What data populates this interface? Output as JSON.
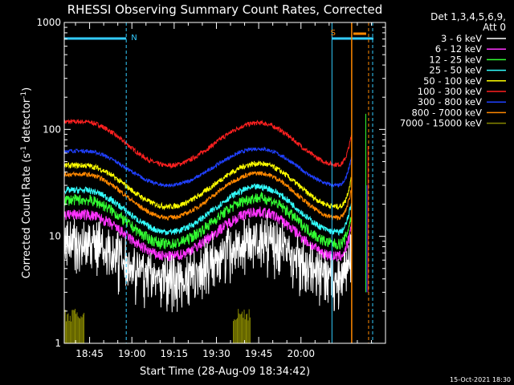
{
  "chart_data": {
    "type": "line",
    "title": "RHESSI Observing Summary Count Rates, Corrected",
    "xlabel": "Start Time (28-Aug-09 18:34:42)",
    "ylabel_main": "Corrected Count Rate (s",
    "ylabel_sup1": "-1",
    "ylabel_mid": " detector",
    "ylabel_sup2": "-1",
    "ylabel_end": ")",
    "x_ticks": [
      "18:45",
      "19:00",
      "19:15",
      "19:30",
      "19:45",
      "20:00"
    ],
    "y_ticks": [
      "1",
      "10",
      "100",
      "1000"
    ],
    "y_log": true,
    "ylim": [
      1,
      1000
    ],
    "xlim_minutes_after_1830": [
      6.0,
      120.0
    ],
    "legend_header_line1": "Det 1,3,4,5,6,9,",
    "legend_header_line2": "Att 0",
    "legend_placement": "right",
    "series": [
      {
        "name": "3 - 6 keV",
        "color": "#ffffff",
        "peak1": 9,
        "trough": 4.0,
        "peak2": 9.5,
        "trough2": 4.0,
        "noise": 0.25
      },
      {
        "name": "6 - 12 keV",
        "color": "#ff33ff",
        "peak1": 16,
        "trough": 6.5,
        "peak2": 17,
        "trough2": 6.5,
        "noise": 0.12
      },
      {
        "name": "12 - 25 keV",
        "color": "#33ff33",
        "peak1": 22,
        "trough": 8.5,
        "peak2": 23,
        "trough2": 8.5,
        "noise": 0.12
      },
      {
        "name": "25 - 50 keV",
        "color": "#33ffff",
        "peak1": 27,
        "trough": 11,
        "peak2": 29,
        "trough2": 11,
        "noise": 0.07
      },
      {
        "name": "50 - 100 keV",
        "color": "#ffff00",
        "peak1": 46,
        "trough": 19,
        "peak2": 48,
        "trough2": 19,
        "noise": 0.06
      },
      {
        "name": "100 - 300 keV",
        "color": "#ff2020",
        "peak1": 118,
        "trough": 46,
        "peak2": 115,
        "trough2": 47,
        "noise": 0.05
      },
      {
        "name": "300 - 800 keV",
        "color": "#2040ff",
        "peak1": 63,
        "trough": 30,
        "peak2": 66,
        "trough2": 30,
        "noise": 0.04
      },
      {
        "name": "800 - 7000 keV",
        "color": "#ff8800",
        "peak1": 38,
        "trough": 15,
        "peak2": 39,
        "trough2": 15,
        "noise": 0.05
      },
      {
        "name": "7000 - 15000 keV",
        "color": "#888800",
        "peak1": null,
        "trough": null,
        "peak2": null,
        "trough2": null,
        "noise": 0
      }
    ],
    "time_model_minutes": {
      "peak1": 13,
      "min1": 43,
      "peak2": 75,
      "min2": 103,
      "gap_start": 108,
      "saa_start": 114
    },
    "annotations": [
      {
        "label": "N",
        "color": "#33ccff"
      },
      {
        "label": "S",
        "color": "#ff8800"
      }
    ],
    "footer_date": "15-Oct-2021 18:30"
  }
}
